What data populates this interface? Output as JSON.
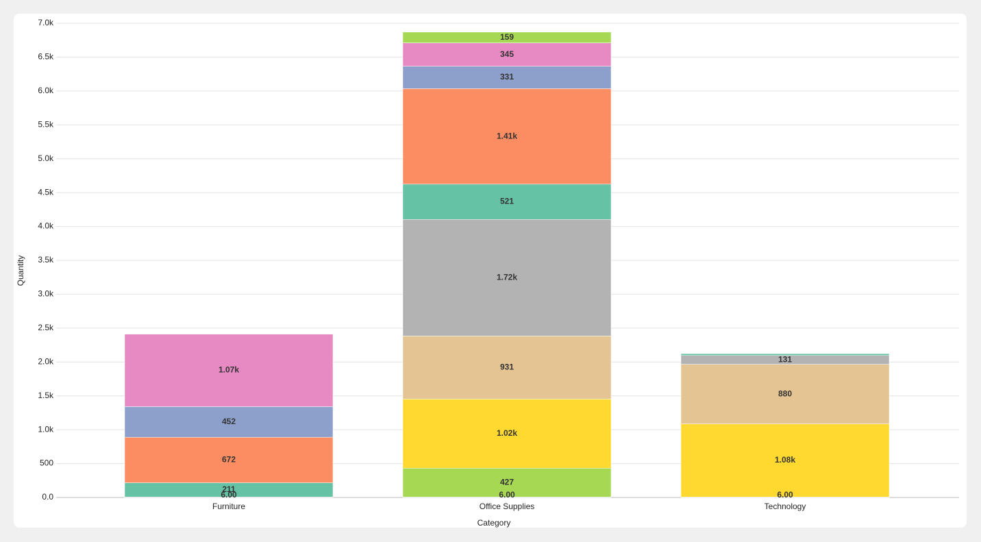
{
  "chart_data": {
    "type": "stacked_bar",
    "x_label": "Category",
    "y_label": "Quantity",
    "categories": [
      "Furniture",
      "Office Supplies",
      "Technology"
    ],
    "series": [
      {
        "color": "#b3b3b3",
        "values": [
          6,
          6,
          6
        ],
        "value_labels": [
          "6.00",
          "6.00",
          "6.00"
        ]
      },
      {
        "color": "#a6d854",
        "values": [
          null,
          427,
          null
        ],
        "value_labels": [
          null,
          "427",
          null
        ]
      },
      {
        "color": "#ffd92f",
        "values": [
          null,
          1020,
          1080
        ],
        "value_labels": [
          null,
          "1.02k",
          "1.08k"
        ]
      },
      {
        "color": "#e5c494",
        "values": [
          null,
          931,
          880
        ],
        "value_labels": [
          null,
          "931",
          "880"
        ]
      },
      {
        "color": "#b3b3b3",
        "values": [
          null,
          1720,
          131
        ],
        "value_labels": [
          null,
          "1.72k",
          "131"
        ]
      },
      {
        "color": "#66c2a5",
        "values": [
          211,
          521,
          26
        ],
        "value_labels": [
          "211",
          "521",
          null
        ]
      },
      {
        "color": "#fc8d62",
        "values": [
          672,
          1410,
          null
        ],
        "value_labels": [
          "672",
          "1.41k",
          null
        ]
      },
      {
        "color": "#8da0cb",
        "values": [
          452,
          331,
          null
        ],
        "value_labels": [
          "452",
          "331",
          null
        ]
      },
      {
        "color": "#e78ac3",
        "values": [
          1070,
          345,
          null
        ],
        "value_labels": [
          "1.07k",
          "345",
          null
        ]
      },
      {
        "color": "#a6d854",
        "values": [
          null,
          159,
          null
        ],
        "value_labels": [
          null,
          "159",
          null
        ]
      }
    ],
    "ylim": [
      0,
      7000
    ],
    "yticks": [
      {
        "value": 0,
        "label": "0.0"
      },
      500,
      {
        "value": 1000,
        "label": "1.0k"
      },
      {
        "value": 1500,
        "label": "1.5k"
      },
      {
        "value": 2000,
        "label": "2.0k"
      },
      {
        "value": 2500,
        "label": "2.5k"
      },
      {
        "value": 3000,
        "label": "3.0k"
      },
      {
        "value": 3500,
        "label": "3.5k"
      },
      {
        "value": 4000,
        "label": "4.0k"
      },
      {
        "value": 4500,
        "label": "4.5k"
      },
      {
        "value": 5000,
        "label": "5.0k"
      },
      {
        "value": 5500,
        "label": "5.5k"
      },
      {
        "value": 6000,
        "label": "6.0k"
      },
      {
        "value": 6500,
        "label": "6.5k"
      },
      {
        "value": 7000,
        "label": "7.0k"
      }
    ],
    "grid": true
  }
}
